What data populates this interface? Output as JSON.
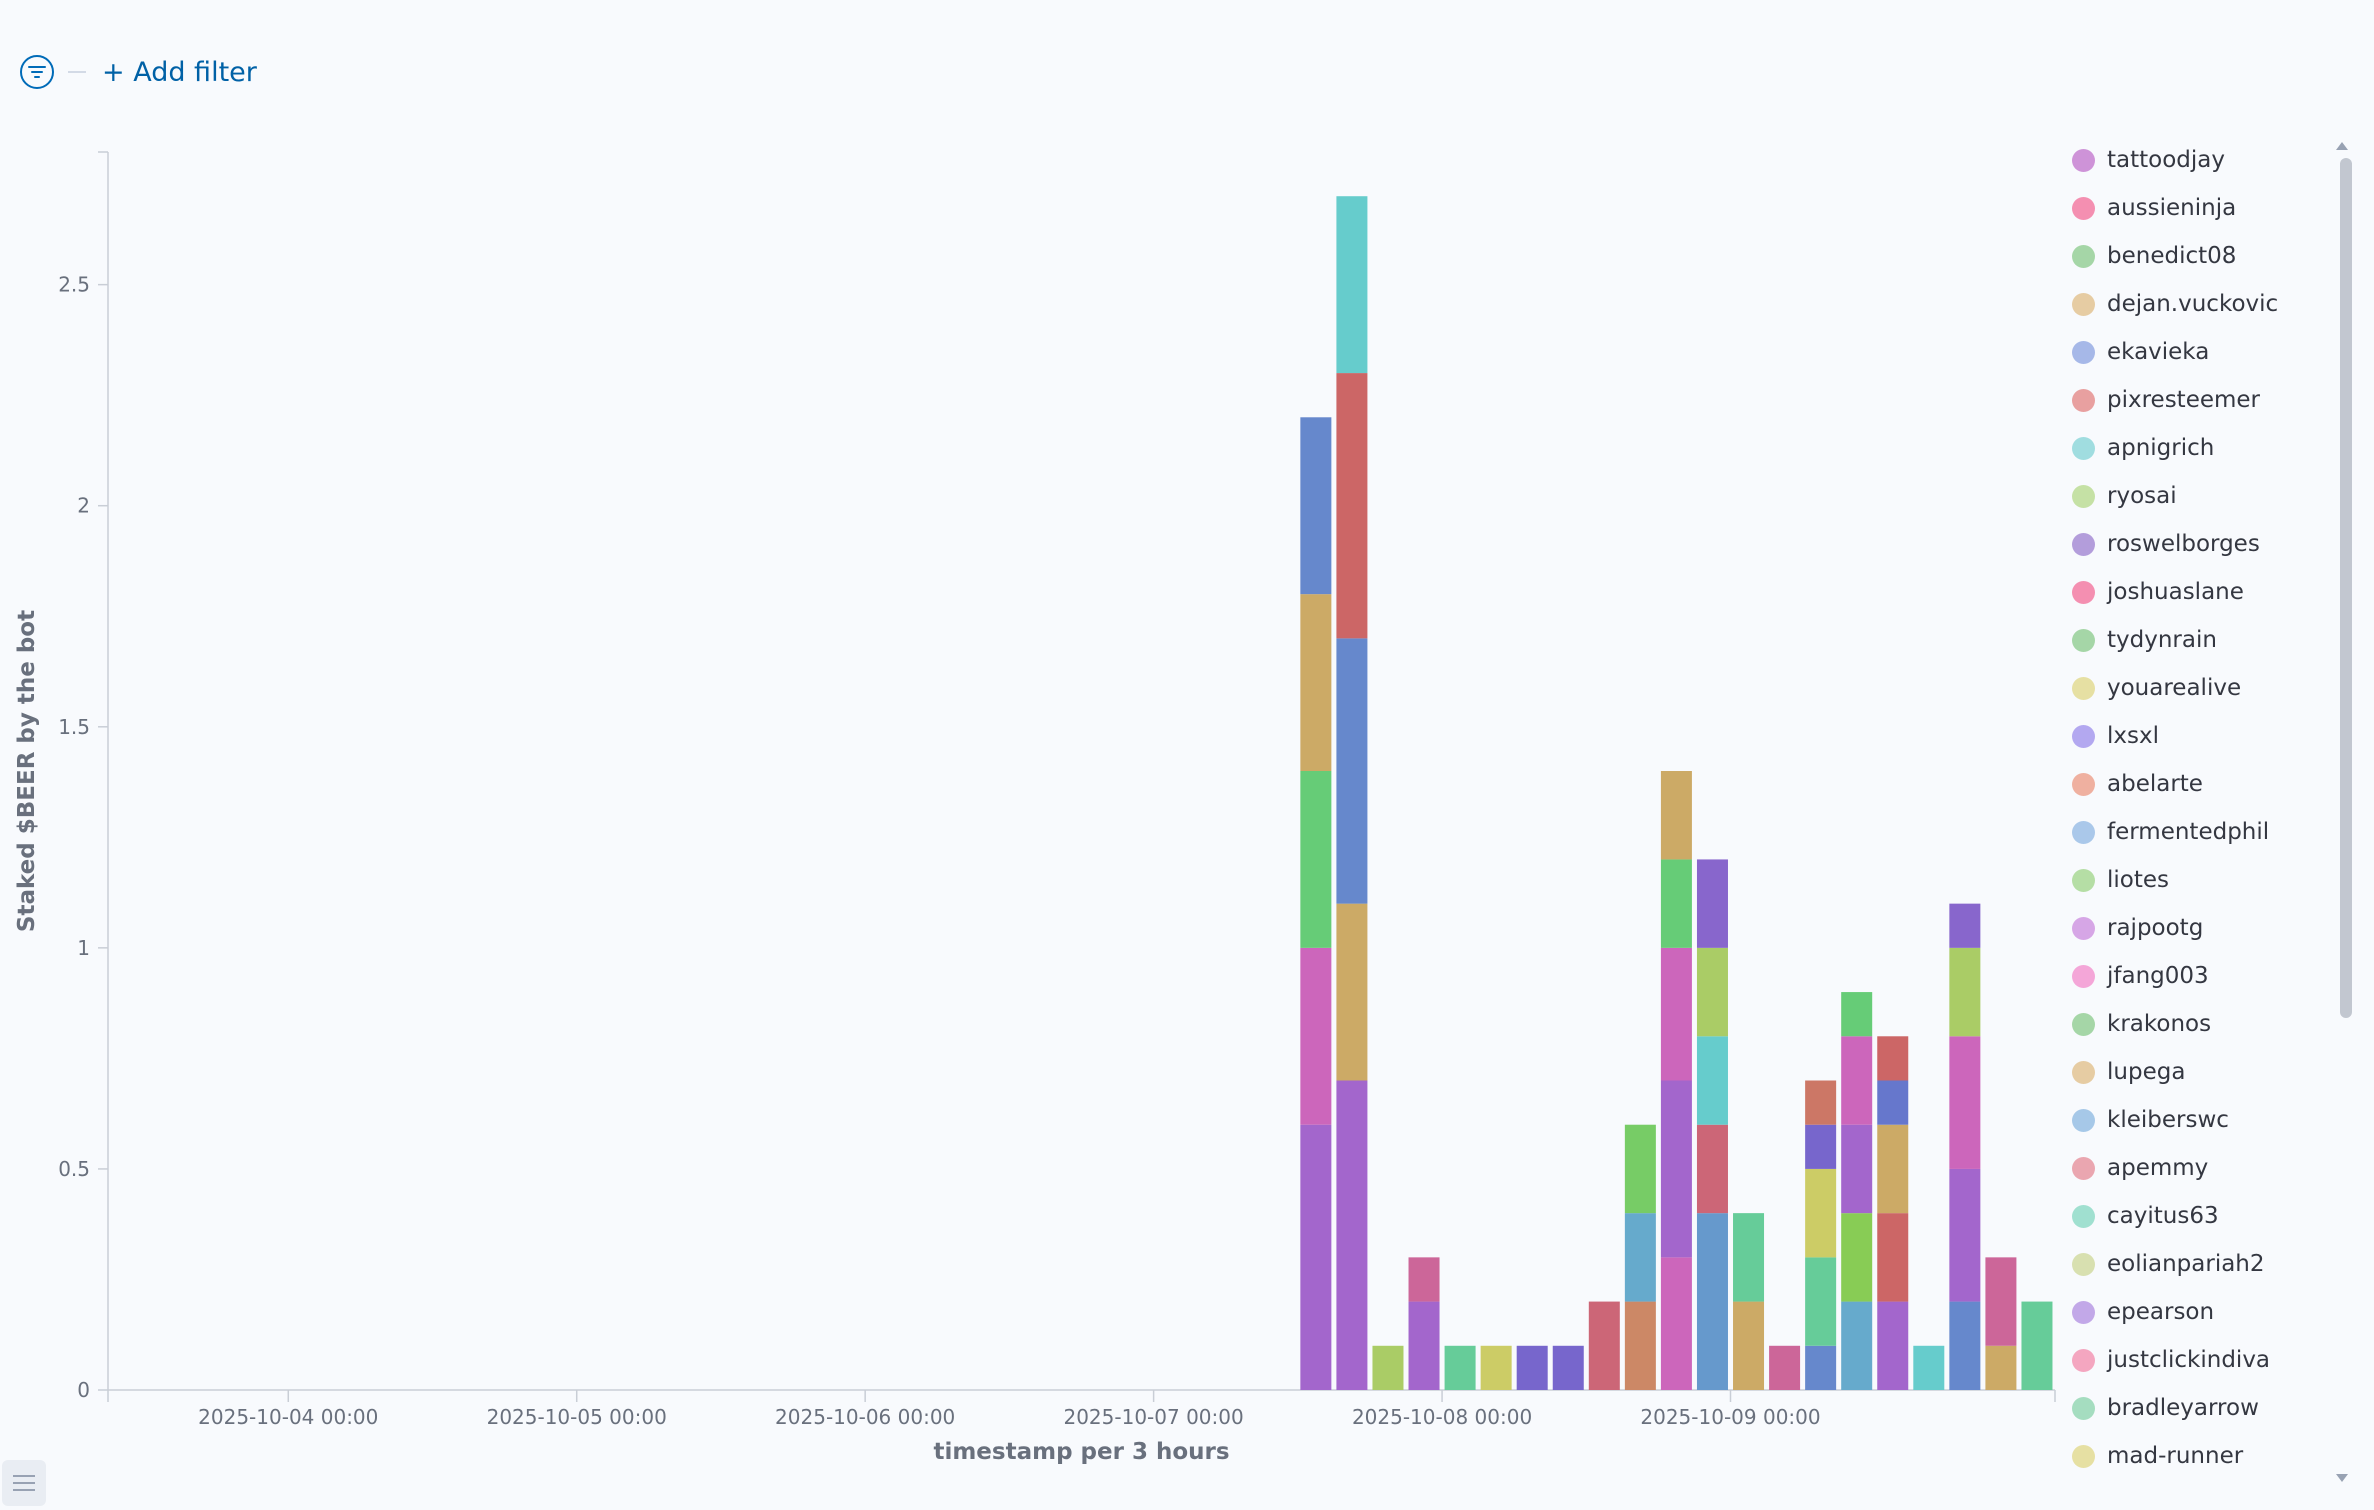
{
  "filter_bar": {
    "add_filter_label": "+ Add filter"
  },
  "legend_names": [
    "tattoodjay",
    "aussieninja",
    "benedict08",
    "dejan.vuckovic",
    "ekavieka",
    "pixresteemer",
    "apnigrich",
    "ryosai",
    "roswelborges",
    "joshuaslane",
    "tydynrain",
    "youarealive",
    "lxsxl",
    "abelarte",
    "fermentedphil",
    "liotes",
    "rajpootg",
    "jfang003",
    "krakonos",
    "lupega",
    "kleiberswc",
    "apemmy",
    "cayitus63",
    "eolianpariah2",
    "epearson",
    "justclickindiva",
    "bradleyarrow",
    "mad-runner"
  ],
  "legend_colors": [
    "#ce93d8",
    "#f48fb1",
    "#a5d6a7",
    "#e6cca3",
    "#a6b8e8",
    "#e8a0a0",
    "#a0dde0",
    "#c5e1a5",
    "#b39ddb",
    "#f48fb1",
    "#a5d6a7",
    "#e6e0a3",
    "#b3a8f0",
    "#efb0a0",
    "#aac8ea",
    "#b5dea5",
    "#d6a6e6",
    "#f4a6d8",
    "#a5d6a7",
    "#e6cca3",
    "#a6c8e8",
    "#eaa6b0",
    "#a0e0d0",
    "#d8e0b0",
    "#c2a8e8",
    "#f4a6c0",
    "#a5ddc0",
    "#e6e0a3"
  ],
  "chart_data": {
    "type": "bar",
    "stacked": true,
    "xlabel": "timestamp per 3 hours",
    "ylabel": "Staked $BEER by the bot",
    "x_tick_labels": [
      "2025-10-04 00:00",
      "2025-10-05 00:00",
      "2025-10-06 00:00",
      "2025-10-07 00:00",
      "2025-10-08 00:00",
      "2025-10-09 00:00"
    ],
    "x_range": [
      "2025-10-03 09:00",
      "2025-10-10 03:00"
    ],
    "y_ticks": [
      0,
      0.5,
      1,
      1.5,
      2,
      2.5
    ],
    "y_tick_labels": [
      "0",
      "0.5",
      "1",
      "1.5",
      "2",
      "2.5"
    ],
    "ylim": [
      0,
      2.8
    ],
    "grid": false,
    "legend_position": "right",
    "bar_interval_hours": 3,
    "bars": [
      {
        "start": "2025-10-07 12:00",
        "segments": [
          {
            "value": 0.6,
            "color": "#a366cc"
          },
          {
            "value": 0.4,
            "color": "#cc66bb"
          },
          {
            "value": 0.4,
            "color": "#66cc77"
          },
          {
            "value": 0.4,
            "color": "#ccaa66"
          },
          {
            "value": 0.4,
            "color": "#6688cc"
          }
        ]
      },
      {
        "start": "2025-10-07 15:00",
        "segments": [
          {
            "value": 0.7,
            "color": "#a366cc"
          },
          {
            "value": 0.4,
            "color": "#ccaa66"
          },
          {
            "value": 0.6,
            "color": "#6688cc"
          },
          {
            "value": 0.6,
            "color": "#cc6666"
          },
          {
            "value": 0.4,
            "color": "#66cccc"
          }
        ]
      },
      {
        "start": "2025-10-07 18:00",
        "segments": [
          {
            "value": 0.1,
            "color": "#aacc66"
          }
        ]
      },
      {
        "start": "2025-10-07 21:00",
        "segments": [
          {
            "value": 0.2,
            "color": "#a366cc"
          },
          {
            "value": 0.1,
            "color": "#cc6699"
          }
        ]
      },
      {
        "start": "2025-10-08 00:00",
        "segments": [
          {
            "value": 0.1,
            "color": "#66cc99"
          }
        ]
      },
      {
        "start": "2025-10-08 03:00",
        "segments": [
          {
            "value": 0.1,
            "color": "#cccc66"
          }
        ]
      },
      {
        "start": "2025-10-08 06:00",
        "segments": [
          {
            "value": 0.1,
            "color": "#7766cc"
          }
        ]
      },
      {
        "start": "2025-10-08 09:00",
        "segments": [
          {
            "value": 0.1,
            "color": "#7766cc"
          }
        ]
      },
      {
        "start": "2025-10-08 12:00",
        "segments": [
          {
            "value": 0.2,
            "color": "#cc6677"
          }
        ]
      },
      {
        "start": "2025-10-08 15:00",
        "segments": [
          {
            "value": 0.2,
            "color": "#cc8866"
          },
          {
            "value": 0.2,
            "color": "#66aacc"
          },
          {
            "value": 0.2,
            "color": "#77cc66"
          }
        ]
      },
      {
        "start": "2025-10-08 18:00",
        "segments": [
          {
            "value": 0.3,
            "color": "#cc66bb"
          },
          {
            "value": 0.4,
            "color": "#a366cc"
          },
          {
            "value": 0.3,
            "color": "#cc66bb"
          },
          {
            "value": 0.2,
            "color": "#66cc77"
          },
          {
            "value": 0.2,
            "color": "#ccaa66"
          }
        ]
      },
      {
        "start": "2025-10-08 21:00",
        "segments": [
          {
            "value": 0.4,
            "color": "#6699cc"
          },
          {
            "value": 0.2,
            "color": "#cc6677"
          },
          {
            "value": 0.2,
            "color": "#66cccc"
          },
          {
            "value": 0.2,
            "color": "#aacc66"
          },
          {
            "value": 0.2,
            "color": "#8866cc"
          }
        ]
      },
      {
        "start": "2025-10-09 00:00",
        "segments": [
          {
            "value": 0.2,
            "color": "#ccaa66"
          },
          {
            "value": 0.2,
            "color": "#66cc99"
          }
        ]
      },
      {
        "start": "2025-10-09 03:00",
        "segments": [
          {
            "value": 0.1,
            "color": "#cc6699"
          }
        ]
      },
      {
        "start": "2025-10-09 06:00",
        "segments": [
          {
            "value": 0.1,
            "color": "#6688cc"
          },
          {
            "value": 0.2,
            "color": "#66cc99"
          },
          {
            "value": 0.2,
            "color": "#cccc66"
          },
          {
            "value": 0.1,
            "color": "#7766cc"
          },
          {
            "value": 0.1,
            "color": "#cc7766"
          }
        ]
      },
      {
        "start": "2025-10-09 09:00",
        "segments": [
          {
            "value": 0.2,
            "color": "#66aacc"
          },
          {
            "value": 0.2,
            "color": "#88cc55"
          },
          {
            "value": 0.2,
            "color": "#a366cc"
          },
          {
            "value": 0.2,
            "color": "#cc66bb"
          },
          {
            "value": 0.1,
            "color": "#66cc77"
          }
        ]
      },
      {
        "start": "2025-10-09 12:00",
        "segments": [
          {
            "value": 0.2,
            "color": "#a366cc"
          },
          {
            "value": 0.2,
            "color": "#cc6666"
          },
          {
            "value": 0.2,
            "color": "#ccaa66"
          },
          {
            "value": 0.1,
            "color": "#6677cc"
          },
          {
            "value": 0.1,
            "color": "#cc6666"
          }
        ]
      },
      {
        "start": "2025-10-09 15:00",
        "segments": [
          {
            "value": 0.1,
            "color": "#66cccc"
          }
        ]
      },
      {
        "start": "2025-10-09 18:00",
        "segments": [
          {
            "value": 0.2,
            "color": "#6688cc"
          },
          {
            "value": 0.3,
            "color": "#a366cc"
          },
          {
            "value": 0.3,
            "color": "#cc66bb"
          },
          {
            "value": 0.2,
            "color": "#aacc66"
          },
          {
            "value": 0.1,
            "color": "#8866cc"
          }
        ]
      },
      {
        "start": "2025-10-09 21:00",
        "segments": [
          {
            "value": 0.1,
            "color": "#ccaa66"
          },
          {
            "value": 0.2,
            "color": "#cc6699"
          }
        ]
      },
      {
        "start": "2025-10-10 00:00",
        "segments": [
          {
            "value": 0.2,
            "color": "#66cc99"
          }
        ]
      }
    ]
  }
}
